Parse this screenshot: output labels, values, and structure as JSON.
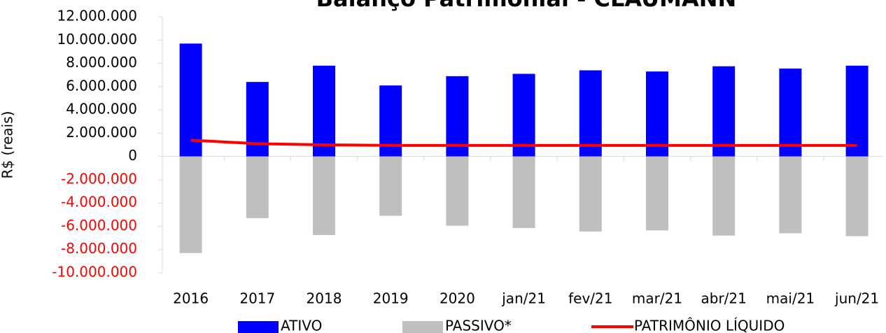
{
  "chart_data": {
    "type": "bar",
    "title": "Balanço Patrimonial - CLAUMANN",
    "y_label": "R$ (reais)",
    "categories": [
      "2016",
      "2017",
      "2018",
      "2019",
      "2020",
      "jan/21",
      "fev/21",
      "mar/21",
      "abr/21",
      "mai/21",
      "jun/21"
    ],
    "series": [
      {
        "name": "ATIVO",
        "color": "#0000ff",
        "kind": "bar",
        "values": [
          9700000,
          6400000,
          7800000,
          6100000,
          6900000,
          7100000,
          7400000,
          7300000,
          7750000,
          7550000,
          7800000
        ]
      },
      {
        "name": "PASSIVO*",
        "color": "#bfbfbf",
        "kind": "bar",
        "values": [
          -8300000,
          -5300000,
          -6750000,
          -5100000,
          -5950000,
          -6150000,
          -6450000,
          -6350000,
          -6800000,
          -6600000,
          -6850000
        ]
      },
      {
        "name": "PATRIMÔNIO LÍQUIDO",
        "color": "#ff0000",
        "kind": "line",
        "values": [
          1400000,
          1100000,
          1000000,
          950000,
          950000,
          950000,
          950000,
          950000,
          950000,
          950000,
          950000
        ]
      }
    ],
    "ylim": [
      -10000000,
      12000000
    ],
    "yticks": [
      {
        "value": -10000000,
        "label": "-10.000.000"
      },
      {
        "value": -8000000,
        "label": "-8.000.000"
      },
      {
        "value": -6000000,
        "label": "-6.000.000"
      },
      {
        "value": -4000000,
        "label": "-4.000.000"
      },
      {
        "value": -2000000,
        "label": "-2.000.000"
      },
      0,
      {
        "value": 2000000,
        "label": "2.000.000"
      },
      {
        "value": 4000000,
        "label": "4.000.000"
      },
      {
        "value": 6000000,
        "label": "6.000.000"
      },
      {
        "value": 8000000,
        "label": "8.000.000"
      },
      {
        "value": 10000000,
        "label": "10.000.000"
      },
      {
        "value": 12000000,
        "label": "12.000.000"
      }
    ],
    "negative_tick_color": "#ff0000",
    "legend": "bottom"
  }
}
